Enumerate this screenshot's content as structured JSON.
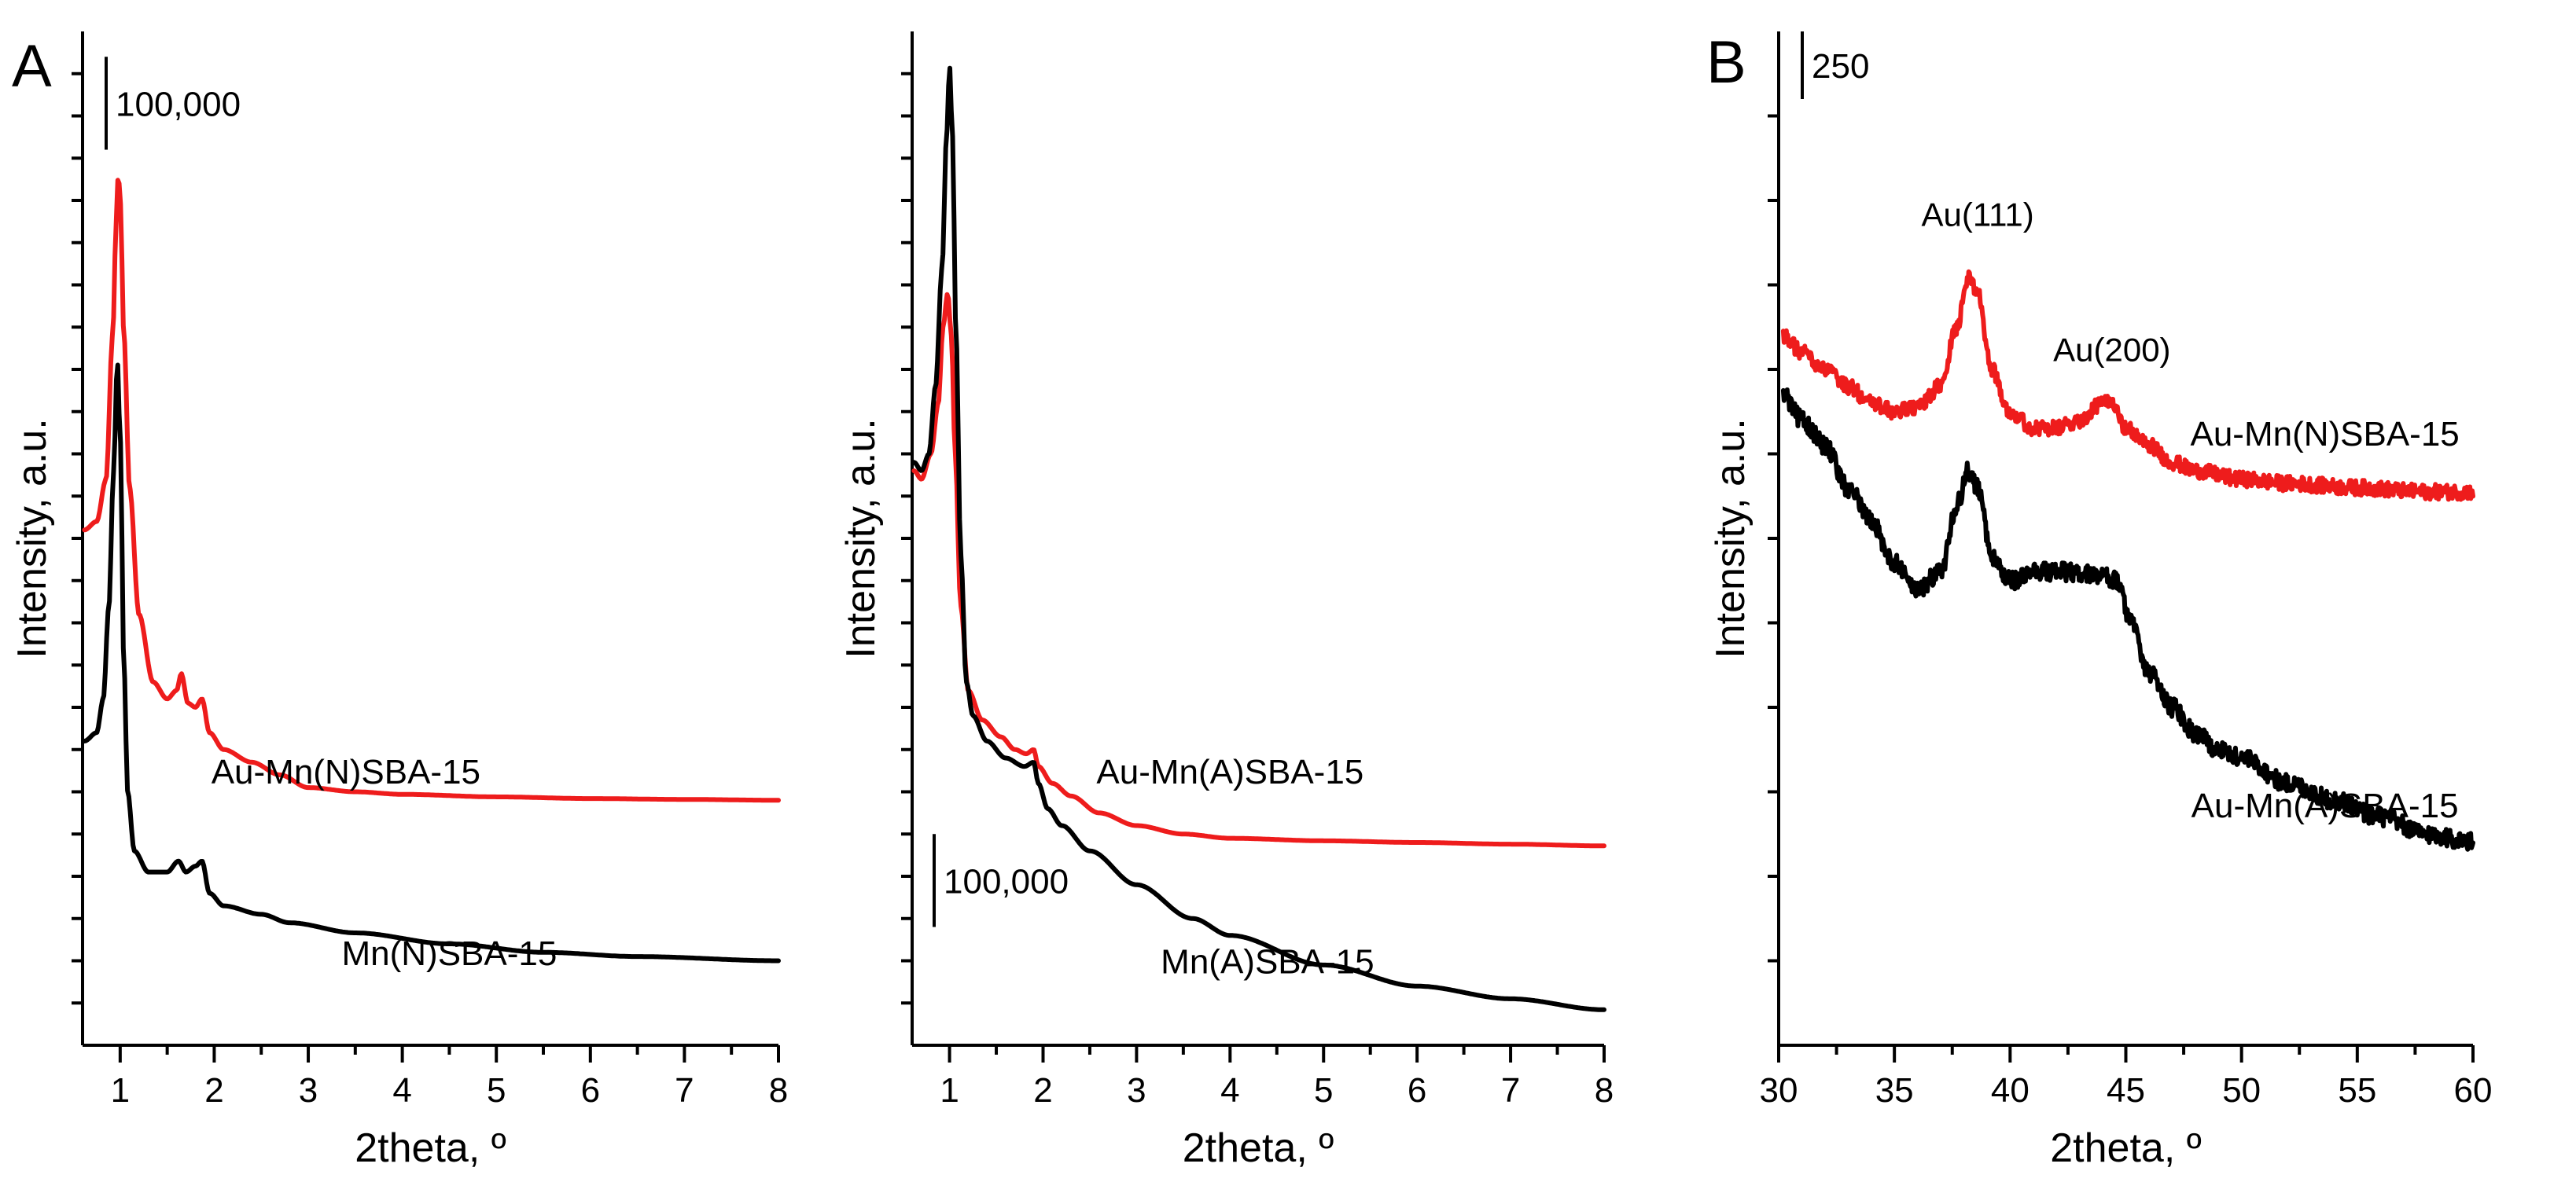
{
  "colors": {
    "red": "#ee1c1c",
    "black": "#000000"
  },
  "panels": [
    {
      "id": "A1",
      "panel_letter": "A",
      "xlabel": "2theta, º",
      "ylabel": "Intensity, a.u.",
      "xlim": [
        0.6,
        8
      ],
      "ylim": [
        0,
        120
      ],
      "x_ticks": [
        1,
        2,
        3,
        4,
        5,
        6,
        7,
        8
      ],
      "x_tick_labels": [
        "1",
        "2",
        "3",
        "4",
        "5",
        "6",
        "7",
        "8"
      ],
      "y_minor_step": 5,
      "scale_bar": {
        "label": "100,000",
        "y_from": 106,
        "y_to": 117
      },
      "series": [
        {
          "name": "Au-Mn(N)SBA-15",
          "color": "#ee1c1c",
          "label_at": [
            3.4,
            31
          ],
          "noise": 0,
          "points": [
            [
              0.62,
              61
            ],
            [
              0.75,
              62
            ],
            [
              0.85,
              67
            ],
            [
              0.92,
              84
            ],
            [
              0.96,
              98
            ],
            [
              0.98,
              103.5
            ],
            [
              1.0,
              100
            ],
            [
              1.04,
              84
            ],
            [
              1.1,
              66
            ],
            [
              1.2,
              51
            ],
            [
              1.35,
              43
            ],
            [
              1.5,
              41
            ],
            [
              1.6,
              42
            ],
            [
              1.65,
              44
            ],
            [
              1.72,
              40.5
            ],
            [
              1.8,
              40
            ],
            [
              1.87,
              41
            ],
            [
              1.95,
              37
            ],
            [
              2.1,
              35
            ],
            [
              2.4,
              33.5
            ],
            [
              2.7,
              32
            ],
            [
              3.0,
              30.5
            ],
            [
              3.5,
              30
            ],
            [
              4,
              29.7
            ],
            [
              5,
              29.4
            ],
            [
              6,
              29.2
            ],
            [
              7,
              29.1
            ],
            [
              8,
              29
            ]
          ]
        },
        {
          "name": "Mn(N)SBA-15",
          "color": "#000000",
          "label_at": [
            4.5,
            9.5
          ],
          "noise": 0,
          "points": [
            [
              0.62,
              36
            ],
            [
              0.75,
              37
            ],
            [
              0.82,
              41
            ],
            [
              0.88,
              52
            ],
            [
              0.93,
              68
            ],
            [
              0.97,
              81
            ],
            [
              1.0,
              72
            ],
            [
              1.04,
              45
            ],
            [
              1.08,
              30
            ],
            [
              1.15,
              23
            ],
            [
              1.3,
              20.5
            ],
            [
              1.5,
              20.5
            ],
            [
              1.62,
              21.8
            ],
            [
              1.7,
              20.5
            ],
            [
              1.8,
              21.2
            ],
            [
              1.87,
              21.8
            ],
            [
              1.95,
              18
            ],
            [
              2.1,
              16.5
            ],
            [
              2.5,
              15.5
            ],
            [
              2.8,
              14.5
            ],
            [
              3.5,
              13.3
            ],
            [
              4.5,
              12
            ],
            [
              5.5,
              11
            ],
            [
              6.5,
              10.5
            ],
            [
              8,
              10
            ]
          ]
        }
      ]
    },
    {
      "id": "A2",
      "panel_letter": "",
      "xlabel": "2theta, º",
      "ylabel": "Intensity, a.u.",
      "xlim": [
        0.6,
        8
      ],
      "ylim": [
        0,
        120
      ],
      "x_ticks": [
        1,
        2,
        3,
        4,
        5,
        6,
        7,
        8
      ],
      "x_tick_labels": [
        "1",
        "2",
        "3",
        "4",
        "5",
        "6",
        "7",
        "8"
      ],
      "y_minor_step": 5,
      "scale_bar": {
        "label": "100,000",
        "y_from": 14,
        "y_to": 25
      },
      "series": [
        {
          "name": "Au-Mn(A)SBA-15",
          "color": "#ee1c1c",
          "label_at": [
            4.0,
            31
          ],
          "noise": 0,
          "points": [
            [
              0.62,
              68
            ],
            [
              0.7,
              67
            ],
            [
              0.8,
              70
            ],
            [
              0.88,
              76
            ],
            [
              0.93,
              85
            ],
            [
              0.98,
              89
            ],
            [
              1.02,
              84
            ],
            [
              1.06,
              70
            ],
            [
              1.12,
              52
            ],
            [
              1.2,
              42
            ],
            [
              1.35,
              38.5
            ],
            [
              1.55,
              36.5
            ],
            [
              1.7,
              35
            ],
            [
              1.82,
              34.5
            ],
            [
              1.9,
              35
            ],
            [
              1.95,
              33
            ],
            [
              2.1,
              31
            ],
            [
              2.3,
              29.5
            ],
            [
              2.6,
              27.5
            ],
            [
              3.0,
              26
            ],
            [
              3.5,
              25
            ],
            [
              4,
              24.5
            ],
            [
              5,
              24.2
            ],
            [
              6,
              24
            ],
            [
              7,
              23.8
            ],
            [
              8,
              23.6
            ]
          ]
        },
        {
          "name": "Mn(A)SBA-15",
          "color": "#000000",
          "label_at": [
            4.4,
            8.5
          ],
          "noise": 0,
          "points": [
            [
              0.62,
              69
            ],
            [
              0.7,
              68
            ],
            [
              0.78,
              70
            ],
            [
              0.85,
              78
            ],
            [
              0.92,
              92
            ],
            [
              0.97,
              108
            ],
            [
              1.0,
              116
            ],
            [
              1.03,
              108
            ],
            [
              1.07,
              84
            ],
            [
              1.12,
              58
            ],
            [
              1.18,
              43
            ],
            [
              1.25,
              39
            ],
            [
              1.4,
              36
            ],
            [
              1.6,
              34
            ],
            [
              1.8,
              33
            ],
            [
              1.9,
              33.5
            ],
            [
              1.95,
              31
            ],
            [
              2.05,
              28
            ],
            [
              2.2,
              26
            ],
            [
              2.5,
              23
            ],
            [
              3,
              19
            ],
            [
              3.6,
              15
            ],
            [
              4,
              13
            ],
            [
              5,
              9.5
            ],
            [
              6,
              7
            ],
            [
              7,
              5.5
            ],
            [
              8,
              4.2
            ]
          ]
        }
      ]
    },
    {
      "id": "B",
      "panel_letter": "B",
      "xlabel": "2theta, º",
      "ylabel": "Intensity, a.u.",
      "xlim": [
        30,
        60
      ],
      "ylim": [
        0,
        120
      ],
      "x_ticks": [
        30,
        35,
        40,
        45,
        50,
        55,
        60
      ],
      "x_tick_labels": [
        "30",
        "35",
        "40",
        "45",
        "50",
        "55",
        "60"
      ],
      "y_minor_step": 10,
      "scale_bar": {
        "label": "250",
        "y_from": 112,
        "y_to": 120
      },
      "peak_labels": [
        {
          "text": "Au(111)",
          "at": [
            38.6,
            97
          ]
        },
        {
          "text": "Au(200)",
          "at": [
            44.4,
            81
          ]
        }
      ],
      "series": [
        {
          "name": "Au-Mn(N)SBA-15",
          "color": "#ee1c1c",
          "label_at": [
            53.6,
            71
          ],
          "noise": 0.9,
          "points": [
            [
              30.2,
              84
            ],
            [
              31,
              82
            ],
            [
              32,
              80
            ],
            [
              33,
              78
            ],
            [
              34,
              76
            ],
            [
              35,
              75
            ],
            [
              36,
              75.5
            ],
            [
              37,
              78
            ],
            [
              37.7,
              85
            ],
            [
              38.2,
              91
            ],
            [
              38.6,
              89
            ],
            [
              39.2,
              80
            ],
            [
              40,
              75
            ],
            [
              41,
              73
            ],
            [
              42,
              73
            ],
            [
              43,
              74
            ],
            [
              44,
              76
            ],
            [
              44.5,
              76
            ],
            [
              45,
              73
            ],
            [
              46,
              71
            ],
            [
              47,
              69
            ],
            [
              48,
              68
            ],
            [
              50,
              67
            ],
            [
              52,
              66.5
            ],
            [
              55,
              66
            ],
            [
              58,
              65.5
            ],
            [
              60,
              65.5
            ]
          ]
        },
        {
          "name": "Au-Mn(A)SBA-15",
          "color": "#000000",
          "label_at": [
            53.6,
            27
          ],
          "noise": 1.1,
          "points": [
            [
              30.2,
              77
            ],
            [
              31,
              74
            ],
            [
              32,
              71
            ],
            [
              33,
              66
            ],
            [
              34,
              62
            ],
            [
              35,
              57
            ],
            [
              36,
              54
            ],
            [
              37,
              56
            ],
            [
              37.7,
              64
            ],
            [
              38.2,
              68
            ],
            [
              38.6,
              66
            ],
            [
              39.2,
              58
            ],
            [
              40,
              55
            ],
            [
              41,
              56
            ],
            [
              42,
              56
            ],
            [
              43,
              56
            ],
            [
              44,
              55.5
            ],
            [
              44.6,
              55
            ],
            [
              45.2,
              50
            ],
            [
              46,
              44
            ],
            [
              47,
              40
            ],
            [
              48,
              37
            ],
            [
              49,
              35
            ],
            [
              50,
              34
            ],
            [
              52,
              31
            ],
            [
              54,
              29
            ],
            [
              56,
              27
            ],
            [
              58,
              25
            ],
            [
              60,
              24
            ]
          ]
        }
      ]
    }
  ],
  "chart_data": [
    {
      "type": "line",
      "title": "",
      "xlabel": "2theta, º",
      "ylabel": "Intensity, a.u.",
      "xlim": [
        0.6,
        8
      ],
      "ylim": [
        0,
        120
      ],
      "scale_bar_label": "100,000",
      "series": [
        {
          "name": "Au-Mn(N)SBA-15",
          "x": [
            0.62,
            1.0,
            1.65,
            1.87,
            3.0,
            8
          ],
          "y": [
            61,
            100,
            44,
            41,
            30.5,
            29
          ]
        },
        {
          "name": "Mn(N)SBA-15",
          "x": [
            0.62,
            0.97,
            1.62,
            1.87,
            3.5,
            8
          ],
          "y": [
            36,
            81,
            21.8,
            21.8,
            13.3,
            10
          ]
        }
      ]
    },
    {
      "type": "line",
      "title": "",
      "xlabel": "2theta, º",
      "ylabel": "Intensity, a.u.",
      "xlim": [
        0.6,
        8
      ],
      "ylim": [
        0,
        120
      ],
      "scale_bar_label": "100,000",
      "series": [
        {
          "name": "Au-Mn(A)SBA-15",
          "x": [
            0.62,
            0.98,
            1.9,
            3.0,
            8
          ],
          "y": [
            68,
            89,
            35,
            26,
            23.6
          ]
        },
        {
          "name": "Mn(A)SBA-15",
          "x": [
            0.62,
            1.0,
            1.9,
            4,
            8
          ],
          "y": [
            69,
            116,
            33.5,
            13,
            4.2
          ]
        }
      ]
    },
    {
      "type": "line",
      "title": "",
      "xlabel": "2theta, º",
      "ylabel": "Intensity, a.u.",
      "xlim": [
        30,
        60
      ],
      "ylim": [
        0,
        120
      ],
      "scale_bar_label": "250",
      "annotations": [
        "Au(111)",
        "Au(200)"
      ],
      "series": [
        {
          "name": "Au-Mn(N)SBA-15",
          "x": [
            30.2,
            35,
            38.2,
            41,
            44.5,
            50,
            60
          ],
          "y": [
            84,
            75,
            91,
            73,
            76,
            67,
            65.5
          ]
        },
        {
          "name": "Au-Mn(A)SBA-15",
          "x": [
            30.2,
            36,
            38.2,
            42,
            44.6,
            50,
            60
          ],
          "y": [
            77,
            54,
            68,
            56,
            55,
            34,
            24
          ]
        }
      ]
    }
  ]
}
